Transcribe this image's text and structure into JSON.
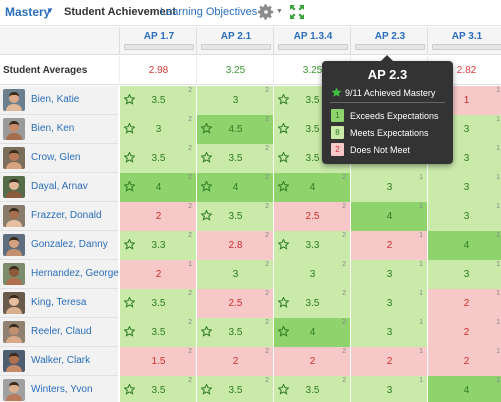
{
  "toolbar": {
    "mastery_label": "Mastery",
    "title": "Student Achievement",
    "separator": "·",
    "link_label": "Learning Objectives"
  },
  "objectives": [
    "AP 1.7",
    "AP 2.1",
    "AP 1.3.4",
    "AP 2.3",
    "AP 3.1"
  ],
  "averages": {
    "label": "Student Averages",
    "values": [
      "2.98",
      "3.25",
      "3.25",
      "",
      "2.82"
    ],
    "levels": [
      "n",
      "m",
      "m",
      "m",
      "n"
    ]
  },
  "students": [
    {
      "name": "Bien, Katie",
      "cells": [
        {
          "v": "3.5",
          "c": "2",
          "lv": "m",
          "star": true
        },
        {
          "v": "3",
          "c": "2",
          "lv": "m",
          "star": false
        },
        {
          "v": "3.5",
          "c": "2",
          "lv": "m",
          "star": true
        },
        {
          "v": "",
          "c": "",
          "lv": "m",
          "star": false
        },
        {
          "v": "1",
          "c": "1",
          "lv": "n",
          "star": false
        }
      ]
    },
    {
      "name": "Bien, Ken",
      "cells": [
        {
          "v": "3",
          "c": "2",
          "lv": "m",
          "star": true
        },
        {
          "v": "4.5",
          "c": "2",
          "lv": "e",
          "star": true
        },
        {
          "v": "3.5",
          "c": "2",
          "lv": "m",
          "star": true
        },
        {
          "v": "",
          "c": "",
          "lv": "m",
          "star": false
        },
        {
          "v": "3",
          "c": "1",
          "lv": "m",
          "star": false
        }
      ]
    },
    {
      "name": "Crow, Glen",
      "cells": [
        {
          "v": "3.5",
          "c": "2",
          "lv": "m",
          "star": true
        },
        {
          "v": "3.5",
          "c": "2",
          "lv": "m",
          "star": true
        },
        {
          "v": "3.5",
          "c": "2",
          "lv": "m",
          "star": true
        },
        {
          "v": "",
          "c": "",
          "lv": "m",
          "star": false
        },
        {
          "v": "3",
          "c": "1",
          "lv": "m",
          "star": false
        }
      ]
    },
    {
      "name": "Dayal, Arnav",
      "cells": [
        {
          "v": "4",
          "c": "2",
          "lv": "e",
          "star": true
        },
        {
          "v": "4",
          "c": "2",
          "lv": "e",
          "star": true
        },
        {
          "v": "4",
          "c": "2",
          "lv": "e",
          "star": true
        },
        {
          "v": "3",
          "c": "1",
          "lv": "m",
          "star": false
        },
        {
          "v": "3",
          "c": "1",
          "lv": "m",
          "star": false
        }
      ]
    },
    {
      "name": "Frazzer, Donald",
      "cells": [
        {
          "v": "2",
          "c": "2",
          "lv": "n",
          "star": false
        },
        {
          "v": "3.5",
          "c": "2",
          "lv": "m",
          "star": true
        },
        {
          "v": "2.5",
          "c": "2",
          "lv": "n",
          "star": false
        },
        {
          "v": "4",
          "c": "1",
          "lv": "e",
          "star": false
        },
        {
          "v": "3",
          "c": "1",
          "lv": "m",
          "star": false
        }
      ]
    },
    {
      "name": "Gonzalez, Danny",
      "cells": [
        {
          "v": "3.3",
          "c": "2",
          "lv": "m",
          "star": true
        },
        {
          "v": "2.8",
          "c": "2",
          "lv": "n",
          "star": false
        },
        {
          "v": "3.3",
          "c": "2",
          "lv": "m",
          "star": true
        },
        {
          "v": "2",
          "c": "1",
          "lv": "n",
          "star": false
        },
        {
          "v": "4",
          "c": "1",
          "lv": "e",
          "star": false
        }
      ]
    },
    {
      "name": "Hernandez, George",
      "cells": [
        {
          "v": "2",
          "c": "1",
          "lv": "n",
          "star": false
        },
        {
          "v": "3",
          "c": "2",
          "lv": "m",
          "star": false
        },
        {
          "v": "3",
          "c": "2",
          "lv": "m",
          "star": false
        },
        {
          "v": "3",
          "c": "1",
          "lv": "m",
          "star": false
        },
        {
          "v": "3",
          "c": "1",
          "lv": "m",
          "star": false
        }
      ]
    },
    {
      "name": "King, Teresa",
      "cells": [
        {
          "v": "3.5",
          "c": "2",
          "lv": "m",
          "star": true
        },
        {
          "v": "2.5",
          "c": "2",
          "lv": "n",
          "star": false
        },
        {
          "v": "3.5",
          "c": "2",
          "lv": "m",
          "star": true
        },
        {
          "v": "3",
          "c": "1",
          "lv": "m",
          "star": false
        },
        {
          "v": "2",
          "c": "1",
          "lv": "n",
          "star": false
        }
      ]
    },
    {
      "name": "Reeler, Claud",
      "cells": [
        {
          "v": "3.5",
          "c": "2",
          "lv": "m",
          "star": true
        },
        {
          "v": "3.5",
          "c": "2",
          "lv": "m",
          "star": true
        },
        {
          "v": "4",
          "c": "2",
          "lv": "e",
          "star": true
        },
        {
          "v": "3",
          "c": "1",
          "lv": "m",
          "star": false
        },
        {
          "v": "2",
          "c": "1",
          "lv": "n",
          "star": false
        }
      ]
    },
    {
      "name": "Walker, Clark",
      "cells": [
        {
          "v": "1.5",
          "c": "2",
          "lv": "n",
          "star": false
        },
        {
          "v": "2",
          "c": "2",
          "lv": "n",
          "star": false
        },
        {
          "v": "2",
          "c": "2",
          "lv": "n",
          "star": false
        },
        {
          "v": "2",
          "c": "1",
          "lv": "n",
          "star": false
        },
        {
          "v": "2",
          "c": "1",
          "lv": "n",
          "star": false
        }
      ]
    },
    {
      "name": "Winters, Yvon",
      "cells": [
        {
          "v": "3.5",
          "c": "2",
          "lv": "m",
          "star": true
        },
        {
          "v": "3.5",
          "c": "2",
          "lv": "m",
          "star": true
        },
        {
          "v": "3.5",
          "c": "2",
          "lv": "m",
          "star": true
        },
        {
          "v": "3",
          "c": "1",
          "lv": "m",
          "star": false
        },
        {
          "v": "4",
          "c": "1",
          "lv": "e",
          "star": false
        }
      ]
    }
  ],
  "tooltip": {
    "title": "AP 2.3",
    "summary": "9/11 Achieved Mastery",
    "items": [
      {
        "count": "1",
        "label": "Exceeds Expectations",
        "lv": "e"
      },
      {
        "count": "8",
        "label": "Meets Expectations",
        "lv": "m"
      },
      {
        "count": "2",
        "label": "Does Not Meet",
        "lv": "n"
      }
    ]
  },
  "icons": {
    "gear": "gear-icon",
    "expand": "expand-icon",
    "star": "star-icon",
    "avatar": "avatar"
  },
  "colors": {
    "link": "#2a6ebb",
    "exceeds": "#8ed36c",
    "meets": "#c9eaa8",
    "not_meet": "#f6c8c8",
    "red_text": "#d63a3a",
    "green_text": "#3c9a34"
  }
}
